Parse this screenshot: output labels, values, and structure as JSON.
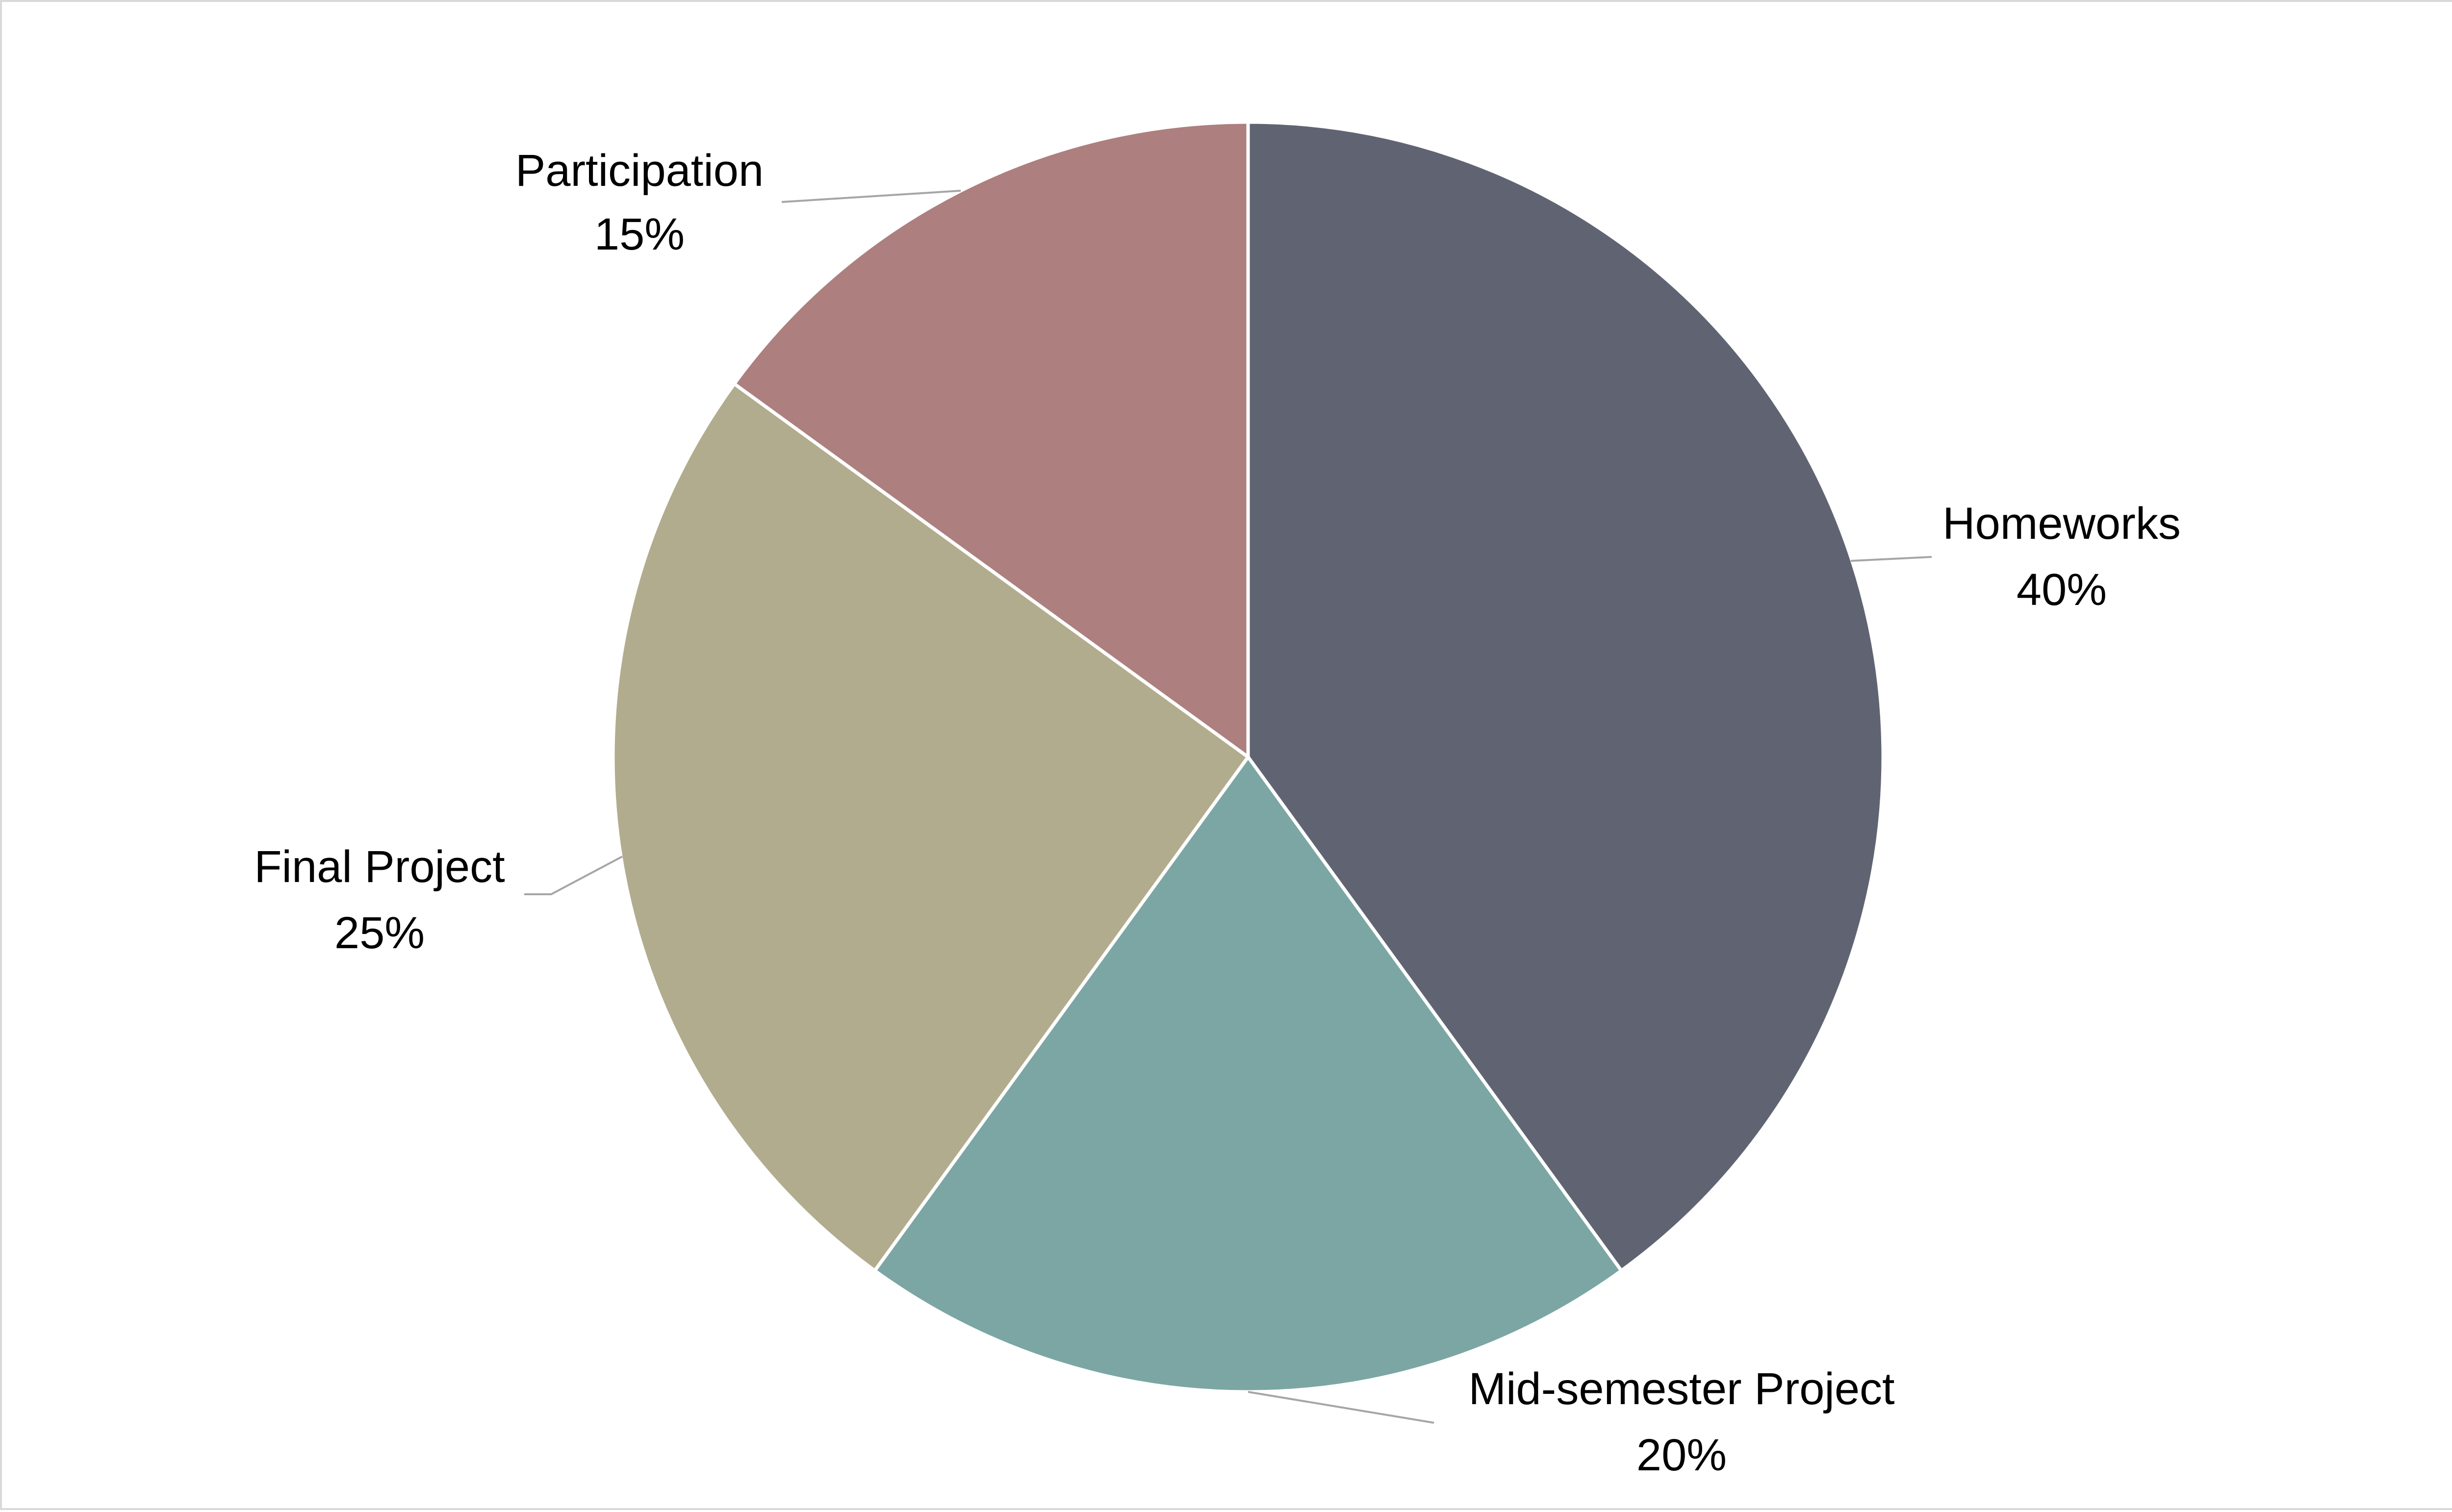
{
  "chart_data": {
    "type": "pie",
    "title": "",
    "start_angle_deg": 0,
    "direction": "clockwise",
    "legend": "none",
    "label_format": "{name}\n{value}%",
    "slices": [
      {
        "name": "Homeworks",
        "value": 40,
        "label": "Homeworks",
        "pct_label": "40%",
        "color": "#606472"
      },
      {
        "name": "Mid-semester Project",
        "value": 20,
        "label": "Mid-semester Project",
        "pct_label": "20%",
        "color": "#7ba6a4"
      },
      {
        "name": "Final Project",
        "value": 25,
        "label": "Final Project",
        "pct_label": "25%",
        "color": "#b2ac8e"
      },
      {
        "name": "Participation",
        "value": 15,
        "label": "Participation",
        "pct_label": "15%",
        "color": "#ad7f7f"
      }
    ]
  }
}
